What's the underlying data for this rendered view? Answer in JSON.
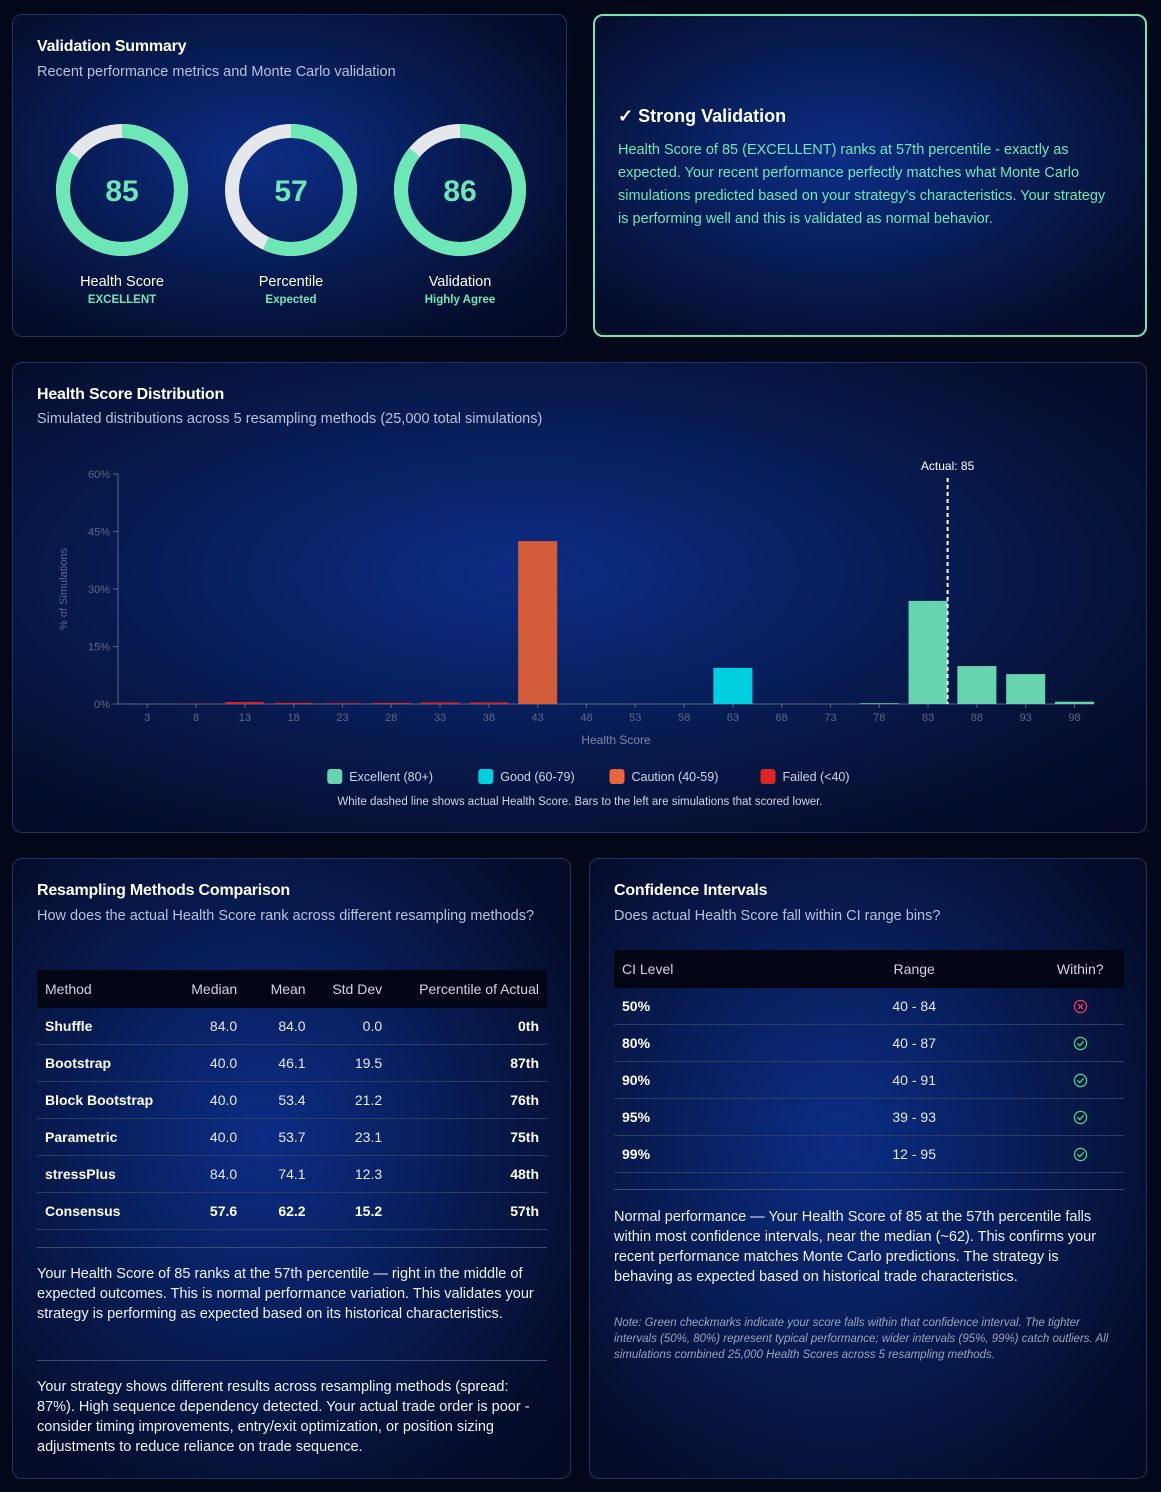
{
  "validation_summary": {
    "title": "Validation Summary",
    "subtitle": "Recent performance metrics and Monte Carlo validation",
    "range": [
      0,
      100
    ],
    "gauges": [
      {
        "value": 85,
        "label": "Health Score",
        "status": "EXCELLENT"
      },
      {
        "value": 57,
        "label": "Percentile",
        "status": "Expected"
      },
      {
        "value": 86,
        "label": "Validation",
        "status": "Highly Agree"
      }
    ]
  },
  "validation_banner": {
    "title": "✓ Strong Validation",
    "text": "Health Score of 85 (EXCELLENT) ranks at 57th percentile - exactly as expected. Your recent performance perfectly matches what Monte Carlo simulations predicted based on your strategy's characteristics. Your strategy is performing well and this is validated as normal behavior."
  },
  "chart_data": {
    "type": "bar",
    "title": "Health Score Distribution",
    "subtitle": "Simulated distributions across 5 resampling methods (25,000 total simulations)",
    "x_label": "Health Score",
    "y_label": "% of Simulations",
    "categories": [
      3,
      8,
      13,
      18,
      23,
      28,
      33,
      38,
      43,
      48,
      53,
      58,
      63,
      68,
      73,
      78,
      83,
      88,
      93,
      98
    ],
    "values": [
      0,
      0.1,
      0.5,
      0.3,
      0.2,
      0.3,
      0.4,
      0.4,
      42.5,
      0,
      0,
      0,
      9.4,
      0,
      0,
      0.2,
      26.9,
      9.9,
      7.8,
      0.6
    ],
    "colors": [
      "#dc2626",
      "#dc2626",
      "#dc2626",
      "#dc2626",
      "#dc2626",
      "#dc2626",
      "#dc2626",
      "#dc2626",
      "#d35c3a",
      "#d35c3a",
      "#d35c3a",
      "#d35c3a",
      "#00cfe0",
      "#00cfe0",
      "#00cfe0",
      "#66d4ae",
      "#66d4ae",
      "#66d4ae",
      "#66d4ae",
      "#66d4ae"
    ],
    "xlim": [
      0,
      100
    ],
    "ylim": [
      0,
      60
    ],
    "yticks": [
      {
        "value": 0,
        "label": "0%"
      },
      {
        "value": 15,
        "label": "15%"
      },
      {
        "value": 30,
        "label": "30%"
      },
      {
        "value": 45,
        "label": "45%"
      },
      {
        "value": 60,
        "label": "60%"
      }
    ],
    "annotation": {
      "label": "Actual: 85",
      "x": 85
    },
    "legend": [
      {
        "name": "Excellent (80+)",
        "color": "#66d4ae"
      },
      {
        "name": "Good (60-79)",
        "color": "#00cfe0"
      },
      {
        "name": "Caution (40-59)",
        "color": "#e8653d"
      },
      {
        "name": "Failed (<40)",
        "color": "#dc2626"
      }
    ],
    "note": "White dashed line shows actual Health Score. Bars to the left are simulations that scored lower."
  },
  "resampling": {
    "title": "Resampling Methods Comparison",
    "subtitle": "How does the actual Health Score rank across different resampling methods?",
    "columns": [
      "Method",
      "Median",
      "Mean",
      "Std Dev",
      "Percentile of Actual"
    ],
    "rows": [
      [
        "Shuffle",
        "84.0",
        "84.0",
        "0.0",
        "0th"
      ],
      [
        "Bootstrap",
        "40.0",
        "46.1",
        "19.5",
        "87th"
      ],
      [
        "Block Bootstrap",
        "40.0",
        "53.4",
        "21.2",
        "76th"
      ],
      [
        "Parametric",
        "40.0",
        "53.7",
        "23.1",
        "75th"
      ],
      [
        "stressPlus",
        "84.0",
        "74.1",
        "12.3",
        "48th"
      ],
      [
        "Consensus",
        "57.6",
        "62.2",
        "15.2",
        "57th"
      ]
    ],
    "paragraphs": [
      "Your Health Score of 85 ranks at the 57th percentile — right in the middle of expected outcomes. This is normal performance variation. This validates your strategy is performing as expected based on its historical characteristics.",
      "Your strategy shows different results across resampling methods (spread: 87%). High sequence dependency detected. Your actual trade order is poor - consider timing improvements, entry/exit optimization, or position sizing adjustments to reduce reliance on trade sequence."
    ]
  },
  "confidence": {
    "title": "Confidence Intervals",
    "subtitle": "Does actual Health Score fall within CI range bins?",
    "columns": [
      "CI Level",
      "Range",
      "Within?"
    ],
    "rows": [
      {
        "level": "50%",
        "range": "40 - 84",
        "within": false
      },
      {
        "level": "80%",
        "range": "40 - 87",
        "within": true
      },
      {
        "level": "90%",
        "range": "40 - 91",
        "within": true
      },
      {
        "level": "95%",
        "range": "39 - 93",
        "within": true
      },
      {
        "level": "99%",
        "range": "12 - 95",
        "within": true
      }
    ],
    "summary": "Normal performance — Your Health Score of 85 at the 57th percentile falls within most confidence intervals, near the median (~62). This confirms your recent performance matches Monte Carlo predictions. The strategy is behaving as expected based on historical trade characteristics.",
    "note": "Note: Green checkmarks indicate your score falls within that confidence interval. The tighter intervals (50%, 80%) represent typical performance; wider intervals (95%, 99%) catch outliers. All simulations combined 25,000 Health Scores across 5 resampling methods."
  }
}
